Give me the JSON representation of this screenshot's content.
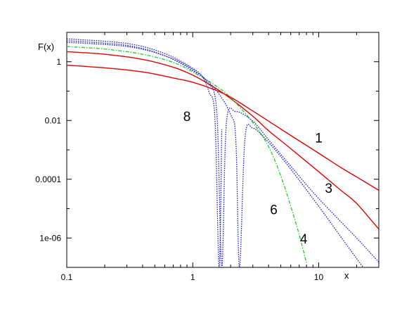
{
  "chart_data": {
    "type": "line",
    "title": "",
    "xlabel": "x",
    "ylabel": "F(x)",
    "xscale": "log",
    "yscale": "log",
    "xlim": [
      0.1,
      30
    ],
    "ylim": [
      1e-07,
      10
    ],
    "grid": false,
    "legend": "none",
    "x_ticks": [
      {
        "value": 0.1,
        "label": "0.1"
      },
      {
        "value": 1,
        "label": "1"
      },
      {
        "value": 10,
        "label": "10"
      }
    ],
    "y_ticks": [
      {
        "value": 1,
        "label": "1"
      },
      {
        "value": 0.01,
        "label": "0.01"
      },
      {
        "value": 0.0001,
        "label": "0.0001"
      },
      {
        "value": 1e-06,
        "label": "1e-06"
      }
    ],
    "series": [
      {
        "label": "1",
        "color": "#e00000",
        "style": "solid",
        "points": [
          [
            0.1,
            0.76
          ],
          [
            0.2,
            0.62
          ],
          [
            0.4,
            0.45
          ],
          [
            0.7,
            0.28
          ],
          [
            1.0,
            0.2
          ],
          [
            1.5,
            0.11
          ],
          [
            2.0,
            0.062
          ],
          [
            3.0,
            0.021
          ],
          [
            4.0,
            0.0095
          ],
          [
            6.0,
            0.0031
          ],
          [
            10.0,
            0.00077
          ],
          [
            15.0,
            0.00025
          ],
          [
            20.0,
            0.00012
          ],
          [
            30.0,
            4.2e-05
          ]
        ]
      },
      {
        "label": "3",
        "color": "#e00000",
        "style": "solid",
        "points": [
          [
            0.1,
            2.2
          ],
          [
            0.2,
            1.8
          ],
          [
            0.4,
            1.2
          ],
          [
            0.7,
            0.65
          ],
          [
            1.0,
            0.35
          ],
          [
            1.5,
            0.13
          ],
          [
            2.0,
            0.056
          ],
          [
            3.0,
            0.014
          ],
          [
            4.0,
            0.0045
          ],
          [
            6.0,
            0.0011
          ],
          [
            10.0,
            0.00018
          ],
          [
            15.0,
            4.2e-05
          ],
          [
            20.0,
            1.5e-05
          ],
          [
            30.0,
            2e-06
          ]
        ]
      },
      {
        "label": "4",
        "color": "#22cc22",
        "style": "dash-dot",
        "points": [
          [
            0.1,
            3.3
          ],
          [
            0.2,
            2.7
          ],
          [
            0.4,
            1.8
          ],
          [
            0.7,
            0.95
          ],
          [
            1.0,
            0.45
          ],
          [
            1.5,
            0.16
          ],
          [
            2.0,
            0.06
          ],
          [
            3.0,
            0.0085
          ],
          [
            4.0,
            0.0013
          ],
          [
            5.0,
            0.00013
          ],
          [
            6.0,
            1.2e-05
          ],
          [
            7.0,
            1.3e-06
          ],
          [
            8.0,
            1.4e-07
          ]
        ]
      },
      {
        "label": "6",
        "color": "#2222cc",
        "style": "dotted",
        "points": [
          [
            0.1,
            4.6
          ],
          [
            0.3,
            3.3
          ],
          [
            0.6,
            1.6
          ],
          [
            1.0,
            0.55
          ],
          [
            1.5,
            0.12
          ],
          [
            2.0,
            0.016
          ],
          [
            2.2,
            0.002
          ],
          [
            2.35,
            1e-07
          ],
          [
            2.6,
            0.0025
          ],
          [
            3.0,
            0.0055
          ],
          [
            4.0,
            0.0018
          ],
          [
            6.0,
            0.00022
          ],
          [
            10.0,
            1.2e-05
          ],
          [
            20.0,
            2e-07
          ],
          [
            30.0,
            2e-08
          ]
        ]
      },
      {
        "label": "",
        "color": "#2222cc",
        "style": "dotted",
        "points": [
          [
            0.1,
            5.2
          ],
          [
            0.3,
            3.6
          ],
          [
            0.6,
            1.6
          ],
          [
            1.0,
            0.5
          ],
          [
            1.3,
            0.2
          ],
          [
            1.55,
            0.02
          ],
          [
            1.7,
            1e-07
          ],
          [
            1.85,
            0.008
          ],
          [
            2.2,
            0.02
          ],
          [
            3.0,
            0.0095
          ],
          [
            4.0,
            0.0022
          ],
          [
            6.0,
            0.00028
          ],
          [
            10.0,
            2.2e-05
          ],
          [
            20.0,
            1e-06
          ],
          [
            30.0,
            1.5e-07
          ]
        ]
      },
      {
        "label": "8",
        "color": "#2222cc",
        "style": "dotted",
        "points": [
          [
            0.1,
            6.0
          ],
          [
            0.3,
            4.2
          ],
          [
            0.6,
            1.9
          ],
          [
            1.0,
            0.6
          ],
          [
            1.2,
            0.3
          ],
          [
            1.35,
            0.09
          ],
          [
            1.5,
            0.012
          ],
          [
            1.62,
            1e-07
          ],
          [
            1.7,
            0.005
          ]
        ]
      }
    ],
    "curve_labels": [
      {
        "text": "1",
        "x": 10,
        "y": 0.0018
      },
      {
        "text": "3",
        "x": 12,
        "y": 3.5e-05
      },
      {
        "text": "8",
        "x": 0.9,
        "y": 0.0095
      },
      {
        "text": "6",
        "x": 4.4,
        "y": 6.5e-06
      },
      {
        "text": "4",
        "x": 7.6,
        "y": 6.5e-07
      }
    ]
  }
}
